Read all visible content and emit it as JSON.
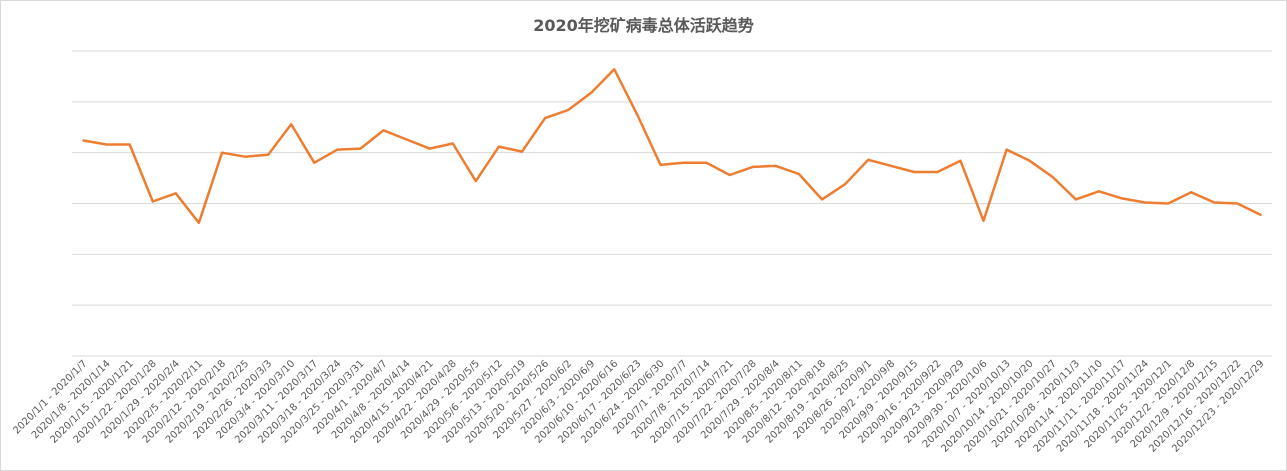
{
  "chart_data": {
    "type": "line",
    "title": "2020年挖矿病毒总体活跃趋势",
    "xlabel": "",
    "ylabel": "",
    "ylim": [
      0,
      300
    ],
    "yticks": [
      0,
      50,
      100,
      150,
      200,
      250,
      300
    ],
    "y_tick_labels_visible": false,
    "grid": true,
    "legend": "none",
    "color": "#ED7D31",
    "categories": [
      "2020/1/1 - 2020/1/7",
      "2020/1/8 - 2020/1/14",
      "2020/1/15 - 2020/1/21",
      "2020/1/22 - 2020/1/28",
      "2020/1/29 - 2020/2/4",
      "2020/2/5 - 2020/2/11",
      "2020/2/12 - 2020/2/18",
      "2020/2/19 - 2020/2/25",
      "2020/2/26 - 2020/3/3",
      "2020/3/4 - 2020/3/10",
      "2020/3/11 - 2020/3/17",
      "2020/3/18 - 2020/3/24",
      "2020/3/25 - 2020/3/31",
      "2020/4/1 - 2020/4/7",
      "2020/4/8 - 2020/4/14",
      "2020/4/15 - 2020/4/21",
      "2020/4/22 - 2020/4/28",
      "2020/4/29 - 2020/5/5",
      "2020/5/6 - 2020/5/12",
      "2020/5/13 - 2020/5/19",
      "2020/5/20 - 2020/5/26",
      "2020/5/27 - 2020/6/2",
      "2020/6/3 - 2020/6/9",
      "2020/6/10 - 2020/6/16",
      "2020/6/17 - 2020/6/23",
      "2020/6/24 - 2020/6/30",
      "2020/7/1 - 2020/7/7",
      "2020/7/8 - 2020/7/14",
      "2020/7/15 - 2020/7/21",
      "2020/7/22 - 2020/7/28",
      "2020/7/29 - 2020/8/4",
      "2020/8/5 - 2020/8/11",
      "2020/8/12 - 2020/8/18",
      "2020/8/19 - 2020/8/25",
      "2020/8/26 - 2020/9/1",
      "2020/9/2 - 2020/9/8",
      "2020/9/9 - 2020/9/15",
      "2020/9/16 - 2020/9/22",
      "2020/9/23 - 2020/9/29",
      "2020/9/30 - 2020/10/6",
      "2020/10/7 - 2020/10/13",
      "2020/10/14 - 2020/10/20",
      "2020/10/21 - 2020/10/27",
      "2020/10/28 - 2020/11/3",
      "2020/11/4 - 2020/11/10",
      "2020/11/11 - 2020/11/17",
      "2020/11/18 - 2020/11/24",
      "2020/11/25 - 2020/12/1",
      "2020/12/2 - 2020/12/8",
      "2020/12/9 - 2020/12/15",
      "2020/12/16 - 2020/12/22",
      "2020/12/23 - 2020/12/29"
    ],
    "series": [
      {
        "values": [
          212,
          208,
          208,
          152,
          160,
          131,
          200,
          196,
          198,
          228,
          190,
          203,
          204,
          222,
          213,
          204,
          209,
          172,
          206,
          201,
          234,
          242,
          259,
          282,
          237,
          188,
          190,
          190,
          178,
          186,
          187,
          179,
          154,
          169,
          193,
          187,
          181,
          181,
          192,
          133,
          203,
          192,
          176,
          154,
          162,
          155,
          151,
          150,
          161,
          151,
          150,
          139
        ]
      }
    ]
  }
}
